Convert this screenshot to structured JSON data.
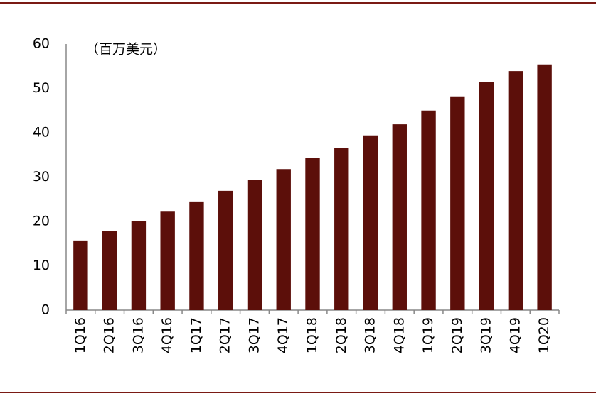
{
  "chart_data": {
    "type": "bar",
    "annotation": "（百万美元）",
    "categories": [
      "1Q16",
      "2Q16",
      "3Q16",
      "4Q16",
      "1Q17",
      "2Q17",
      "3Q17",
      "4Q17",
      "1Q18",
      "2Q18",
      "3Q18",
      "4Q18",
      "1Q19",
      "2Q19",
      "3Q19",
      "4Q19",
      "1Q20"
    ],
    "values": [
      15.7,
      17.9,
      20.0,
      22.2,
      24.5,
      26.9,
      29.3,
      31.8,
      34.4,
      36.6,
      39.4,
      41.9,
      45.0,
      48.2,
      51.5,
      53.9,
      55.4
    ],
    "color": "#5c0f0a",
    "ylim": [
      0,
      60
    ],
    "yticks": [
      0,
      10,
      20,
      30,
      40,
      50,
      60
    ],
    "grid": false
  }
}
